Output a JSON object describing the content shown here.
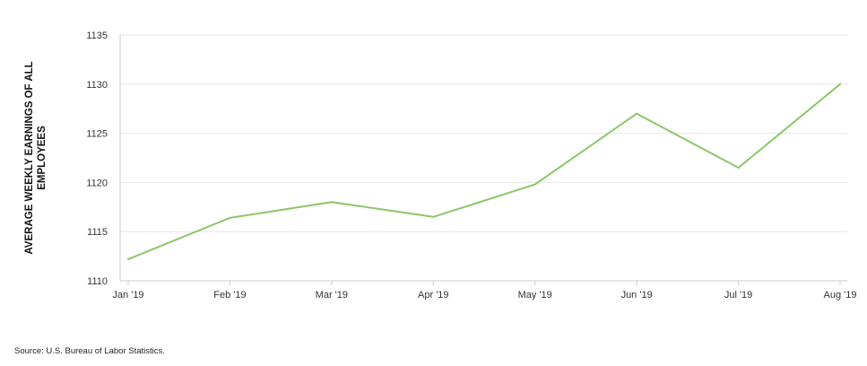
{
  "chart_data": {
    "type": "line",
    "categories": [
      "Jan '19",
      "Feb '19",
      "Mar '19",
      "Apr '19",
      "May '19",
      "Jun '19",
      "Jul '19",
      "Aug '19"
    ],
    "series": [
      {
        "values": [
          1112.2,
          1116.4,
          1118.0,
          1116.5,
          1119.8,
          1127.0,
          1121.5,
          1130.0
        ]
      }
    ],
    "ylabel": "AVERAGE WEEKLY EARNINGS OF ALL EMPLOYEES",
    "ylabel_lines": [
      "AVERAGE WEEKLY EARNINGS OF ALL",
      "EMPLOYEES"
    ],
    "ylim": [
      1110,
      1135
    ],
    "yticks": [
      1110,
      1115,
      1120,
      1125,
      1130,
      1135
    ],
    "grid": true,
    "legend": "none",
    "line_color": "#8cc66a"
  },
  "source": "Source: U.S. Bureau of Labor Statistics."
}
